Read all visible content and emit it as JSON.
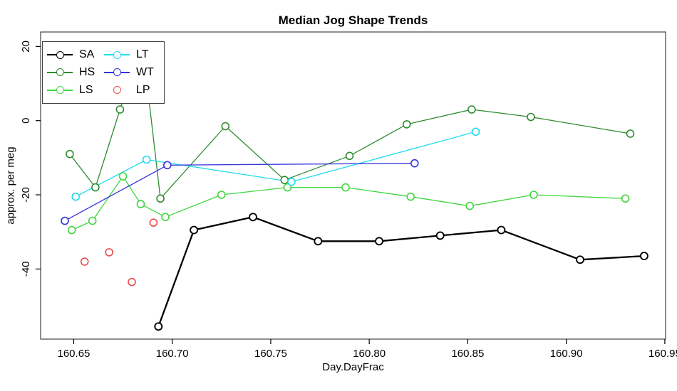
{
  "title": "Median Jog Shape Trends",
  "chart_data": {
    "type": "line",
    "title": "Median Jog Shape Trends",
    "xlabel": "Day.DayFrac",
    "ylabel": "approx. per meg",
    "xlim": [
      160.6332,
      160.9504
    ],
    "ylim": [
      -58.9,
      23.9
    ],
    "x_ticks": [
      160.65,
      160.7,
      160.75,
      160.8,
      160.85,
      160.9,
      160.95
    ],
    "x_tick_labels": [
      "160.65",
      "160.70",
      "160.75",
      "160.80",
      "160.85",
      "160.90",
      "160.95"
    ],
    "y_ticks": [
      20,
      0,
      -20,
      -40
    ],
    "y_tick_labels": [
      "20",
      "0",
      "-20",
      "-40"
    ],
    "grid": false,
    "legend_position": "top-left",
    "marker": "open-circle",
    "series": [
      {
        "name": "SA",
        "color": "#000000",
        "line": true,
        "line_width": 2.3,
        "points": [
          [
            160.693,
            -55.5
          ],
          [
            160.711,
            -29.5
          ],
          [
            160.741,
            -26
          ],
          [
            160.774,
            -32.5
          ],
          [
            160.805,
            -32.5
          ],
          [
            160.836,
            -31
          ],
          [
            160.867,
            -29.5
          ],
          [
            160.907,
            -37.5
          ],
          [
            160.9395,
            -36.5
          ]
        ]
      },
      {
        "name": "HS",
        "color": "#2E8B2E",
        "line": true,
        "line_width": 1.3,
        "points": [
          [
            160.648,
            -9
          ],
          [
            160.661,
            -18
          ],
          [
            160.6735,
            3
          ],
          [
            160.685,
            20.3
          ],
          [
            160.694,
            -21
          ],
          [
            160.727,
            -1.5
          ],
          [
            160.757,
            -16
          ],
          [
            160.79,
            -9.5
          ],
          [
            160.819,
            -1
          ],
          [
            160.852,
            3
          ],
          [
            160.882,
            1
          ],
          [
            160.9325,
            -3.5
          ]
        ]
      },
      {
        "name": "LS",
        "color": "#3FD63F",
        "line": true,
        "line_width": 1.3,
        "points": [
          [
            160.649,
            -29.5
          ],
          [
            160.6595,
            -27
          ],
          [
            160.675,
            -15
          ],
          [
            160.684,
            -22.5
          ],
          [
            160.6965,
            -26
          ],
          [
            160.725,
            -20
          ],
          [
            160.7585,
            -18
          ],
          [
            160.788,
            -18
          ],
          [
            160.821,
            -20.5
          ],
          [
            160.851,
            -23
          ],
          [
            160.8835,
            -20
          ],
          [
            160.93,
            -21
          ]
        ]
      },
      {
        "name": "LT",
        "color": "#1FDCEE",
        "line": true,
        "line_width": 1.3,
        "points": [
          [
            160.651,
            -20.5
          ],
          [
            160.687,
            -10.5
          ],
          [
            160.7605,
            -16.5
          ],
          [
            160.854,
            -3
          ]
        ]
      },
      {
        "name": "WT",
        "color": "#3434DD",
        "line": true,
        "line_width": 1.3,
        "points": [
          [
            160.6455,
            -27
          ],
          [
            160.6975,
            -12
          ],
          [
            160.823,
            -11.5
          ]
        ]
      },
      {
        "name": "LP",
        "color": "#E74C4C",
        "line": false,
        "line_width": 1.3,
        "points": [
          [
            160.6555,
            -38
          ],
          [
            160.668,
            -35.5
          ],
          [
            160.6795,
            -43.5
          ],
          [
            160.6905,
            -27.5
          ]
        ]
      }
    ],
    "legend_order": [
      "SA",
      "LT",
      "HS",
      "WT",
      "LS",
      "LP"
    ]
  }
}
